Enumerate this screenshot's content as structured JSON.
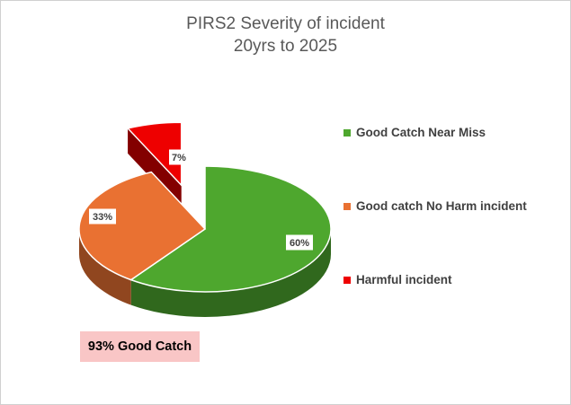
{
  "chart_data": {
    "type": "pie",
    "title_lines": [
      "PIRS2 Severity of incident",
      "20yrs to 2025"
    ],
    "slices": [
      {
        "name": "Good Catch Near Miss",
        "value": 60,
        "label": "60%",
        "color": "#4ea72e"
      },
      {
        "name": "Good catch No Harm incident",
        "value": 33,
        "label": "33%",
        "color": "#e97132"
      },
      {
        "name": "Harmful incident",
        "value": 7,
        "label": "7%",
        "color": "#ee0000"
      }
    ],
    "three_d": true,
    "exploded_slice": "Harmful incident",
    "legend_position": "right"
  },
  "callout": {
    "text": "93% Good Catch",
    "color": "#f9c6c6"
  }
}
